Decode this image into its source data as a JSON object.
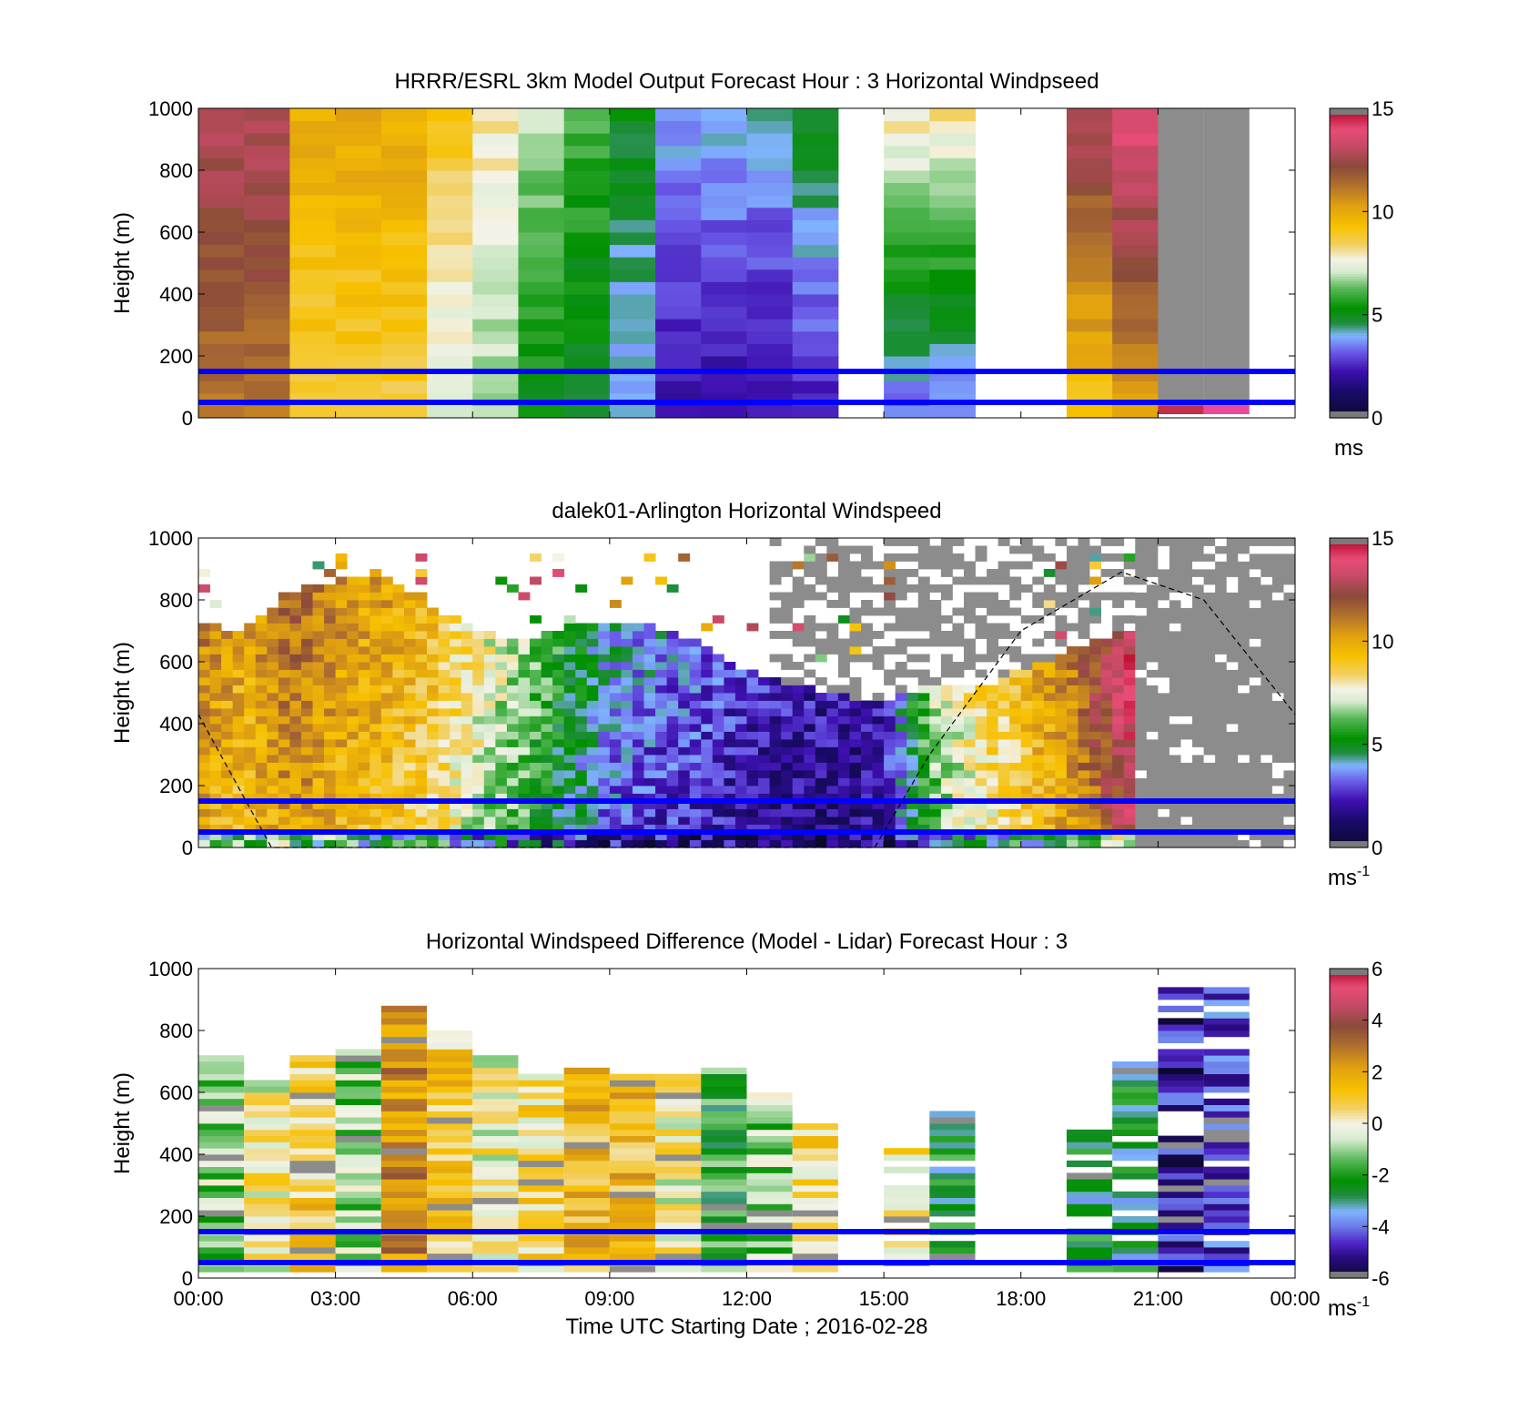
{
  "x_tick_labels": [
    "00:00",
    "03:00",
    "06:00",
    "09:00",
    "12:00",
    "15:00",
    "18:00",
    "21:00",
    "00:00"
  ],
  "x_label": "Time UTC  Starting Date ; 2016-02-28",
  "y_label": "Height (m)",
  "y_tick_labels": [
    "0",
    "200",
    "400",
    "600",
    "800",
    "1000"
  ],
  "reference_lines_m": [
    150,
    50
  ],
  "colors": {
    "reference_line": "#0000ff",
    "no_data": "#ffffff",
    "flagged": "#8c8c8c"
  },
  "chart_data": [
    {
      "type": "heatmap",
      "title": "HRRR/ESRL 3km Model Output   Forecast Hour : 3 Horizontal Windpseed",
      "ylabel": "Height (m)",
      "xlabel": "",
      "ylim": [
        0,
        1000
      ],
      "xlim_hours": [
        0,
        24
      ],
      "colorbar": {
        "min": 0,
        "max": 15,
        "ticks": [
          0,
          5,
          10,
          15
        ],
        "ticklabels": [
          "0",
          "5",
          "10",
          "15"
        ],
        "units": "ms"
      },
      "columns_hours": [
        0.5,
        1.5,
        2.5,
        3.5,
        4.5,
        5.5,
        6.5,
        7.5,
        8.5,
        9.5,
        10.5,
        11.5,
        12.5,
        13.5,
        15.5,
        16.5,
        19.5,
        20.5,
        21.5,
        22.5
      ],
      "column_value_ranges_ms": [
        [
          10,
          13
        ],
        [
          10,
          13
        ],
        [
          8,
          10
        ],
        [
          8,
          10
        ],
        [
          8,
          10
        ],
        [
          6,
          9
        ],
        [
          6,
          8
        ],
        [
          4,
          7
        ],
        [
          4,
          6
        ],
        [
          3,
          5
        ],
        [
          1,
          4
        ],
        [
          1,
          4
        ],
        [
          1,
          4
        ],
        [
          1,
          5
        ],
        [
          1,
          8
        ],
        [
          1,
          8
        ],
        [
          7,
          13
        ],
        [
          8,
          14
        ],
        [
          null,
          null
        ],
        [
          null,
          null
        ]
      ],
      "missing_hours": [
        [
          14,
          15
        ],
        [
          17,
          19
        ]
      ],
      "flagged_hours": [
        [
          21,
          23
        ]
      ]
    },
    {
      "type": "heatmap",
      "title": "dalek01-Arlington  Horizontal Windspeed",
      "ylabel": "Height (m)",
      "xlabel": "",
      "ylim": [
        0,
        1000
      ],
      "xlim_hours": [
        0,
        24
      ],
      "colorbar": {
        "min": 0,
        "max": 15,
        "ticks": [
          0,
          5,
          10,
          15
        ],
        "ticklabels": [
          "0",
          "5",
          "10",
          "15"
        ],
        "units": "ms-1"
      },
      "top_of_data_m_by_hour": [
        [
          0,
          730
        ],
        [
          1,
          680
        ],
        [
          2,
          820
        ],
        [
          3,
          850
        ],
        [
          4,
          870
        ],
        [
          5,
          780
        ],
        [
          6,
          700
        ],
        [
          7,
          650
        ],
        [
          8,
          700
        ],
        [
          9,
          720
        ],
        [
          10,
          700
        ],
        [
          11,
          650
        ],
        [
          12,
          560
        ],
        [
          13,
          520
        ],
        [
          14,
          480
        ],
        [
          15,
          450
        ],
        [
          16,
          520
        ],
        [
          17,
          500
        ],
        [
          18,
          560
        ],
        [
          19,
          620
        ],
        [
          20,
          680
        ],
        [
          20.6,
          700
        ],
        [
          21,
          0
        ]
      ],
      "flagged_from_hour": 20.4,
      "dashed_curve": "boundary-layer height",
      "dashed_curve_m_by_hour": [
        [
          0,
          430
        ],
        [
          1.6,
          0
        ],
        [
          14.8,
          0
        ],
        [
          16,
          300
        ],
        [
          18,
          700
        ],
        [
          20.2,
          890
        ],
        [
          22,
          800
        ],
        [
          24,
          430
        ]
      ]
    },
    {
      "type": "heatmap",
      "title": "Horizontal Windspeed Difference (Model - Lidar) Forecast Hour : 3",
      "ylabel": "Height (m)",
      "xlabel": "Time UTC  Starting Date ; 2016-02-28",
      "ylim": [
        0,
        1000
      ],
      "xlim_hours": [
        0,
        24
      ],
      "colorbar": {
        "min": -6,
        "max": 6,
        "ticks": [
          -6,
          -4,
          -2,
          0,
          2,
          4,
          6
        ],
        "ticklabels": [
          "-6",
          "-4",
          "-2",
          "0",
          "2",
          "4",
          "6"
        ],
        "units": "ms-1"
      },
      "columns_hours": [
        0.5,
        1.5,
        2.5,
        3.5,
        4.5,
        5.5,
        6.5,
        7.5,
        8.5,
        9.5,
        10.5,
        11.5,
        12.5,
        13.5,
        15.5,
        16.5,
        19.5,
        20.5,
        21.5,
        22.5
      ],
      "column_top_m": [
        710,
        640,
        710,
        730,
        880,
        800,
        710,
        650,
        680,
        650,
        660,
        680,
        600,
        500,
        420,
        530,
        470,
        700,
        940,
        940
      ],
      "column_mean_diff_ms": [
        -1,
        0,
        1,
        -1,
        2.5,
        1,
        0,
        0.5,
        1.5,
        1.5,
        0,
        -2,
        -1,
        0.5,
        0.5,
        -2.5,
        -2.5,
        -2.5,
        -5,
        -4.5
      ]
    }
  ]
}
